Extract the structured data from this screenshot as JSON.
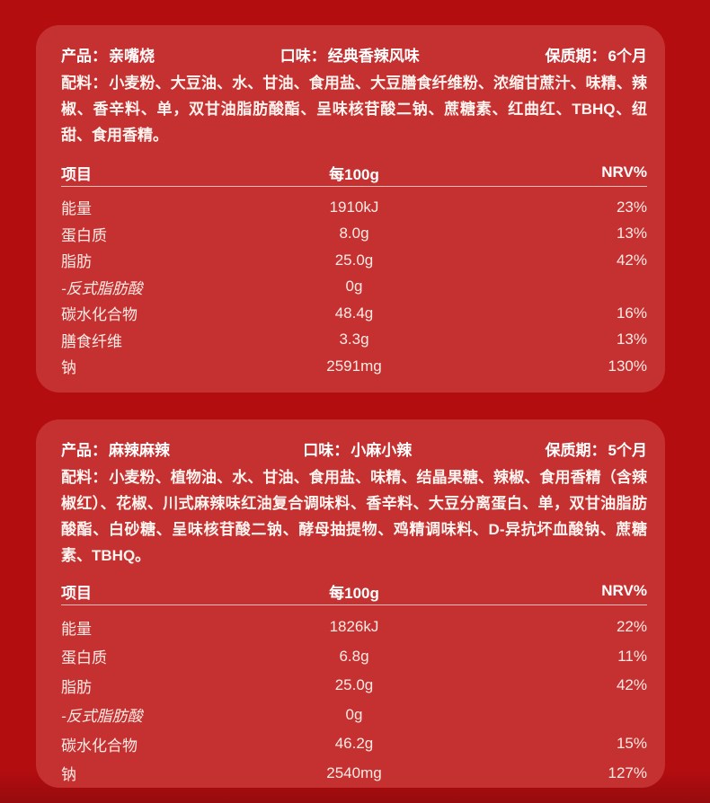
{
  "colors": {
    "page_bg": "#b30d10",
    "card_bg": "#c53031",
    "header_text": "#ffffff",
    "table_text": "#fcebe5",
    "divider": "#f8d6d0"
  },
  "cards": [
    {
      "product_label": "产品：",
      "product_value": "亲嘴烧",
      "flavor_label": "口味：",
      "flavor_value": "经典香辣风味",
      "shelf_label": "保质期：",
      "shelf_value": "6个月",
      "ingredients_label": "配料：",
      "ingredients_value": "小麦粉、大豆油、水、甘油、食用盐、大豆膳食纤维粉、浓缩甘蔗汁、味精、辣椒、香辛料、单，双甘油脂肪酸酯、呈味核苷酸二钠、蔗糖素、红曲红、TBHQ、纽甜、食用香精。",
      "table": {
        "headers": [
          "项目",
          "每100g",
          "NRV%"
        ],
        "rows": [
          {
            "name": "能量",
            "per100g": "1910kJ",
            "nrv": "23%"
          },
          {
            "name": "蛋白质",
            "per100g": "8.0g",
            "nrv": "13%"
          },
          {
            "name": "脂肪",
            "per100g": "25.0g",
            "nrv": "42%"
          },
          {
            "name": "-反式脂肪酸",
            "per100g": "0g",
            "nrv": ""
          },
          {
            "name": "碳水化合物",
            "per100g": "48.4g",
            "nrv": "16%"
          },
          {
            "name": "膳食纤维",
            "per100g": "3.3g",
            "nrv": "13%"
          },
          {
            "name": "钠",
            "per100g": "2591mg",
            "nrv": "130%"
          }
        ]
      }
    },
    {
      "product_label": "产品：",
      "product_value": "麻辣麻辣",
      "flavor_label": "口味：",
      "flavor_value": "小麻小辣",
      "shelf_label": "保质期：",
      "shelf_value": "5个月",
      "ingredients_label": "配料：",
      "ingredients_value": "小麦粉、植物油、水、甘油、食用盐、味精、结晶果糖、辣椒、食用香精（含辣椒红）、花椒、川式麻辣味红油复合调味料、香辛料、大豆分离蛋白、单，双甘油脂肪酸酯、白砂糖、呈味核苷酸二钠、酵母抽提物、鸡精调味料、D-异抗坏血酸钠、蔗糖素、TBHQ。",
      "table": {
        "headers": [
          "项目",
          "每100g",
          "NRV%"
        ],
        "rows": [
          {
            "name": "能量",
            "per100g": "1826kJ",
            "nrv": "22%"
          },
          {
            "name": "蛋白质",
            "per100g": "6.8g",
            "nrv": "11%"
          },
          {
            "name": "脂肪",
            "per100g": "25.0g",
            "nrv": "42%"
          },
          {
            "name": "-反式脂肪酸",
            "per100g": "0g",
            "nrv": ""
          },
          {
            "name": "碳水化合物",
            "per100g": "46.2g",
            "nrv": "15%"
          },
          {
            "name": "钠",
            "per100g": "2540mg",
            "nrv": "127%"
          }
        ]
      }
    }
  ]
}
